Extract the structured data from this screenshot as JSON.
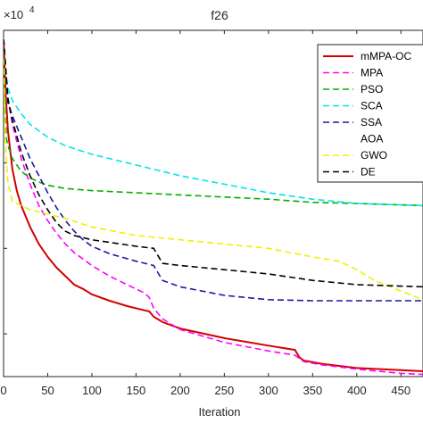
{
  "chart_data": {
    "type": "line",
    "title": "f26",
    "xlabel": "Iteration",
    "ylabel": "",
    "exponent_label": "×10",
    "exponent_power": "4",
    "xlim": [
      0,
      475
    ],
    "xticks": [
      0,
      50,
      100,
      150,
      200,
      250,
      300,
      350,
      400,
      450
    ],
    "xtick_labels": [
      "0",
      "50",
      "100",
      "150",
      "200",
      "250",
      "300",
      "350",
      "400",
      "450"
    ],
    "ylim": [
      0,
      1.62
    ],
    "yticks": [
      0.2,
      0.6,
      1.0,
      1.4
    ],
    "legend_position": "top-right",
    "series": [
      {
        "name": "mMPA-OC",
        "color": "#d40000",
        "dash": "solid",
        "x": [
          0,
          2,
          5,
          10,
          15,
          20,
          30,
          40,
          50,
          60,
          70,
          80,
          90,
          100,
          120,
          140,
          160,
          165,
          170,
          180,
          200,
          250,
          300,
          330,
          335,
          340,
          360,
          380,
          400,
          450,
          475
        ],
        "y": [
          1.58,
          1.35,
          1.15,
          0.97,
          0.87,
          0.8,
          0.7,
          0.62,
          0.56,
          0.51,
          0.47,
          0.43,
          0.41,
          0.385,
          0.355,
          0.33,
          0.31,
          0.305,
          0.28,
          0.255,
          0.225,
          0.18,
          0.145,
          0.125,
          0.09,
          0.075,
          0.06,
          0.05,
          0.04,
          0.03,
          0.025
        ]
      },
      {
        "name": "MPA",
        "color": "#ff00ff",
        "dash": "dashed",
        "x": [
          0,
          5,
          10,
          20,
          30,
          40,
          50,
          60,
          70,
          80,
          90,
          100,
          120,
          140,
          160,
          165,
          170,
          180,
          200,
          250,
          300,
          330,
          340,
          360,
          400,
          450,
          475
        ],
        "y": [
          1.58,
          1.3,
          1.18,
          1.02,
          0.9,
          0.8,
          0.73,
          0.67,
          0.62,
          0.58,
          0.55,
          0.52,
          0.47,
          0.43,
          0.39,
          0.37,
          0.32,
          0.27,
          0.22,
          0.16,
          0.12,
          0.1,
          0.07,
          0.055,
          0.035,
          0.015,
          0.01
        ]
      },
      {
        "name": "PSO",
        "color": "#00b000",
        "dash": "dashed",
        "x": [
          0,
          3,
          5,
          10,
          20,
          30,
          40,
          50,
          70,
          100,
          150,
          200,
          250,
          300,
          350,
          400,
          475
        ],
        "y": [
          1.58,
          1.12,
          1.08,
          1.02,
          0.96,
          0.93,
          0.91,
          0.895,
          0.88,
          0.87,
          0.86,
          0.85,
          0.84,
          0.83,
          0.815,
          0.81,
          0.8
        ]
      },
      {
        "name": "SCA",
        "color": "#00e5ee",
        "dash": "dashed",
        "x": [
          0,
          3,
          5,
          10,
          20,
          30,
          40,
          50,
          70,
          100,
          150,
          200,
          250,
          300,
          350,
          400,
          475
        ],
        "y": [
          1.58,
          1.4,
          1.35,
          1.29,
          1.23,
          1.18,
          1.15,
          1.12,
          1.08,
          1.04,
          0.99,
          0.94,
          0.9,
          0.86,
          0.83,
          0.81,
          0.8
        ]
      },
      {
        "name": "SSA",
        "color": "#1a1aa6",
        "dash": "dashed",
        "x": [
          0,
          5,
          10,
          20,
          30,
          40,
          50,
          60,
          70,
          80,
          90,
          100,
          120,
          150,
          170,
          180,
          200,
          250,
          300,
          350,
          400,
          475
        ],
        "y": [
          1.58,
          1.28,
          1.22,
          1.12,
          1.02,
          0.94,
          0.86,
          0.79,
          0.73,
          0.68,
          0.64,
          0.61,
          0.575,
          0.54,
          0.52,
          0.45,
          0.42,
          0.38,
          0.36,
          0.355,
          0.355,
          0.355
        ]
      },
      {
        "name": "AOA",
        "color": "#ffffff",
        "dash": "dashed",
        "x": [
          0,
          475
        ],
        "y": [
          1.58,
          1.58
        ]
      },
      {
        "name": "GWO",
        "color": "#f0f000",
        "dash": "dashed",
        "x": [
          0,
          2,
          5,
          10,
          20,
          30,
          50,
          70,
          100,
          150,
          200,
          250,
          300,
          350,
          380,
          400,
          420,
          450,
          475
        ],
        "y": [
          1.58,
          1.1,
          0.9,
          0.82,
          0.8,
          0.78,
          0.76,
          0.74,
          0.7,
          0.66,
          0.64,
          0.62,
          0.6,
          0.56,
          0.54,
          0.5,
          0.45,
          0.4,
          0.36
        ]
      },
      {
        "name": "DE",
        "color": "#000000",
        "dash": "dashed",
        "x": [
          0,
          5,
          10,
          20,
          30,
          40,
          50,
          60,
          70,
          80,
          100,
          150,
          170,
          180,
          200,
          250,
          300,
          350,
          400,
          475
        ],
        "y": [
          1.58,
          1.3,
          1.2,
          1.05,
          0.94,
          0.85,
          0.78,
          0.72,
          0.68,
          0.66,
          0.64,
          0.61,
          0.6,
          0.53,
          0.52,
          0.5,
          0.48,
          0.45,
          0.43,
          0.42
        ]
      }
    ]
  }
}
